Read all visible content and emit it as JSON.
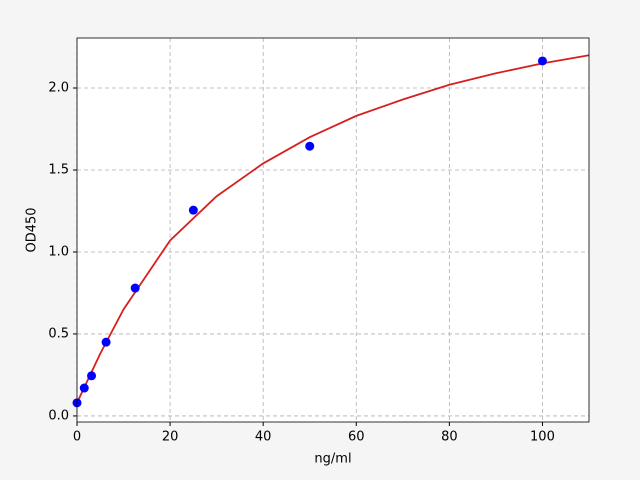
{
  "chart_data": {
    "type": "scatter",
    "xlabel": "ng/ml",
    "ylabel": "OD450",
    "xlim": [
      0,
      110
    ],
    "ylim": [
      -0.037,
      2.305
    ],
    "xticks": [
      0,
      20,
      40,
      60,
      80,
      100
    ],
    "yticks": [
      {
        "value": 0,
        "label": "0.0"
      },
      {
        "value": 0.5,
        "label": "0.5"
      },
      {
        "value": 1,
        "label": "1.0"
      },
      {
        "value": 1.5,
        "label": "1.5"
      },
      {
        "value": 2,
        "label": "2.0"
      }
    ],
    "grid": true,
    "series": [
      {
        "type": "line",
        "color": "#d62020",
        "x": [
          0,
          5,
          10,
          20,
          30,
          40,
          50,
          60,
          70,
          80,
          90,
          100,
          110
        ],
        "values": [
          0.08,
          0.38,
          0.65,
          1.07,
          1.34,
          1.54,
          1.7,
          1.83,
          1.93,
          2.02,
          2.09,
          2.15,
          2.2
        ]
      },
      {
        "type": "scatter",
        "color": "#0000ff",
        "x": [
          0,
          1.56,
          3.125,
          6.25,
          12.5,
          25,
          50,
          100
        ],
        "values": [
          0.08,
          0.17,
          0.245,
          0.45,
          0.78,
          1.255,
          1.645,
          2.165
        ]
      }
    ]
  }
}
